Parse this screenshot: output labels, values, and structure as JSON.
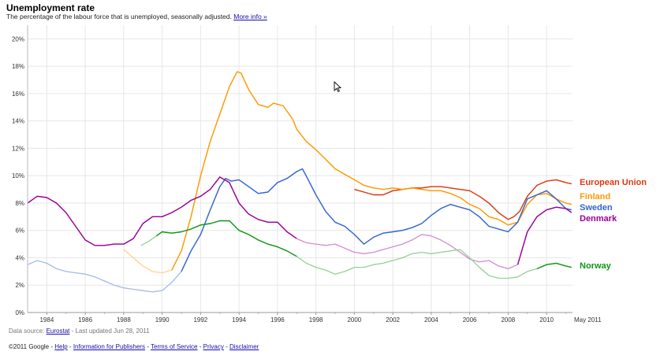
{
  "header": {
    "title": "Unemployment rate",
    "subtitle": "The percentage of the labour force that is unemployed, seasonally adjusted.",
    "more_info": "More info »"
  },
  "source": {
    "prefix": "Data source:",
    "link": "Eurostat",
    "updated": "- Last updated Jun 28, 2011"
  },
  "footer": {
    "copyright": "©2011 Google -",
    "links": [
      "Help",
      "Information for Publishers",
      "Terms of Service",
      "Privacy",
      "Disclaimer"
    ]
  },
  "chart_data": {
    "type": "line",
    "ylim": [
      0,
      21
    ],
    "y_ticks": [
      "0%",
      "2%",
      "4%",
      "6%",
      "8%",
      "10%",
      "12%",
      "14%",
      "16%",
      "18%",
      "20%"
    ],
    "y_tick_values": [
      0,
      2,
      4,
      6,
      8,
      10,
      12,
      14,
      16,
      18,
      20
    ],
    "xlim": [
      1983.0,
      2011.35
    ],
    "x_ticks": [
      "1984",
      "1986",
      "1988",
      "1990",
      "1992",
      "1994",
      "1996",
      "1998",
      "2000",
      "2002",
      "2004",
      "2006",
      "2008",
      "2010"
    ],
    "x_tick_values": [
      1984,
      1986,
      1988,
      1990,
      1992,
      1994,
      1996,
      1998,
      2000,
      2002,
      2004,
      2006,
      2008,
      2010
    ],
    "x_end_label": "May 2011",
    "series": [
      {
        "name": "European Union",
        "color": "#dc3912",
        "x": [
          2000.0,
          2000.5,
          2001.0,
          2001.5,
          2002.0,
          2002.5,
          2003.0,
          2003.5,
          2004.0,
          2004.5,
          2005.0,
          2005.5,
          2006.0,
          2006.5,
          2007.0,
          2007.5,
          2008.0,
          2008.3,
          2008.6,
          2009.0,
          2009.5,
          2010.0,
          2010.5,
          2011.0,
          2011.3
        ],
        "y": [
          9.0,
          8.8,
          8.6,
          8.6,
          8.9,
          9.0,
          9.1,
          9.1,
          9.2,
          9.2,
          9.1,
          9.0,
          8.9,
          8.5,
          8.0,
          7.3,
          6.8,
          7.0,
          7.4,
          8.5,
          9.3,
          9.6,
          9.7,
          9.5,
          9.4
        ]
      },
      {
        "name": "Finland",
        "color": "#ff9900",
        "x": [
          1988.0,
          1988.5,
          1989.0,
          1989.5,
          1990.0,
          1990.5,
          1991.0,
          1991.5,
          1992.0,
          1992.5,
          1993.0,
          1993.5,
          1993.9,
          1994.1,
          1994.5,
          1995.0,
          1995.5,
          1995.8,
          1996.3,
          1996.8,
          1997.0,
          1997.5,
          1998.0,
          1998.5,
          1999.0,
          1999.5,
          2000.0,
          2000.5,
          2001.0,
          2001.5,
          2002.0,
          2002.5,
          2003.0,
          2003.5,
          2004.0,
          2004.5,
          2005.0,
          2005.5,
          2006.0,
          2006.5,
          2007.0,
          2007.5,
          2008.0,
          2008.5,
          2009.0,
          2009.5,
          2010.0,
          2010.5,
          2011.0,
          2011.3
        ],
        "y": [
          4.6,
          4.0,
          3.4,
          3.0,
          2.9,
          3.1,
          4.5,
          7.0,
          10.0,
          12.5,
          14.5,
          16.5,
          17.6,
          17.5,
          16.3,
          15.2,
          15.0,
          15.3,
          15.1,
          14.1,
          13.4,
          12.5,
          11.9,
          11.2,
          10.5,
          10.1,
          9.7,
          9.3,
          9.1,
          9.0,
          9.1,
          9.0,
          9.1,
          9.0,
          8.9,
          8.9,
          8.7,
          8.4,
          7.9,
          7.6,
          7.0,
          6.8,
          6.4,
          6.6,
          7.9,
          8.6,
          8.7,
          8.3,
          8.0,
          7.9
        ]
      },
      {
        "name": "Sweden",
        "color": "#3366cc",
        "x": [
          1983.0,
          1983.5,
          1984.0,
          1984.5,
          1985.0,
          1985.5,
          1986.0,
          1986.5,
          1987.0,
          1987.5,
          1988.0,
          1988.5,
          1989.0,
          1989.5,
          1990.0,
          1990.5,
          1991.0,
          1991.5,
          1992.0,
          1992.5,
          1993.0,
          1993.3,
          1993.6,
          1994.0,
          1994.5,
          1995.0,
          1995.5,
          1996.0,
          1996.5,
          1997.0,
          1997.3,
          1997.6,
          1998.0,
          1998.5,
          1999.0,
          1999.5,
          2000.0,
          2000.5,
          2001.0,
          2001.5,
          2002.0,
          2002.5,
          2003.0,
          2003.5,
          2004.0,
          2004.5,
          2005.0,
          2005.5,
          2006.0,
          2006.5,
          2007.0,
          2007.5,
          2008.0,
          2008.5,
          2009.0,
          2009.5,
          2010.0,
          2010.5,
          2011.0,
          2011.3
        ],
        "y": [
          3.5,
          3.8,
          3.6,
          3.2,
          3.0,
          2.9,
          2.8,
          2.6,
          2.3,
          2.0,
          1.8,
          1.7,
          1.6,
          1.5,
          1.6,
          2.2,
          3.0,
          4.5,
          5.7,
          7.5,
          9.2,
          9.8,
          9.6,
          9.7,
          9.2,
          8.7,
          8.8,
          9.5,
          9.8,
          10.3,
          10.5,
          9.7,
          8.6,
          7.4,
          6.6,
          6.3,
          5.7,
          5.0,
          5.5,
          5.8,
          5.9,
          6.0,
          6.2,
          6.5,
          7.1,
          7.6,
          7.9,
          7.7,
          7.5,
          7.0,
          6.3,
          6.1,
          5.9,
          6.6,
          8.3,
          8.6,
          8.9,
          8.3,
          7.6,
          7.5
        ]
      },
      {
        "name": "Denmark",
        "color": "#990099",
        "x": [
          1983.0,
          1983.5,
          1984.0,
          1984.5,
          1985.0,
          1985.5,
          1986.0,
          1986.5,
          1987.0,
          1987.5,
          1988.0,
          1988.5,
          1989.0,
          1989.5,
          1990.0,
          1990.5,
          1991.0,
          1991.5,
          1992.0,
          1992.5,
          1993.0,
          1993.5,
          1994.0,
          1994.5,
          1995.0,
          1995.5,
          1996.0,
          1996.5,
          1997.0,
          1997.5,
          1998.0,
          1998.5,
          1999.0,
          1999.5,
          2000.0,
          2000.5,
          2001.0,
          2001.5,
          2002.0,
          2002.5,
          2003.0,
          2003.5,
          2004.0,
          2004.5,
          2005.0,
          2005.5,
          2006.0,
          2006.5,
          2007.0,
          2007.5,
          2008.0,
          2008.5,
          2009.0,
          2009.5,
          2010.0,
          2010.5,
          2011.0,
          2011.3
        ],
        "y": [
          8.0,
          8.5,
          8.4,
          8.0,
          7.3,
          6.3,
          5.3,
          4.9,
          4.9,
          5.0,
          5.0,
          5.4,
          6.5,
          7.0,
          7.0,
          7.3,
          7.7,
          8.2,
          8.5,
          9.0,
          9.9,
          9.5,
          8.0,
          7.2,
          6.8,
          6.6,
          6.6,
          5.9,
          5.4,
          5.1,
          5.0,
          4.9,
          5.0,
          4.7,
          4.4,
          4.3,
          4.4,
          4.6,
          4.8,
          5.0,
          5.3,
          5.7,
          5.6,
          5.3,
          4.9,
          4.4,
          3.9,
          3.7,
          3.8,
          3.4,
          3.2,
          3.5,
          5.9,
          7.0,
          7.5,
          7.7,
          7.6,
          7.3
        ]
      },
      {
        "name": "Norway",
        "color": "#109618",
        "x": [
          1988.9,
          1989.3,
          1989.7,
          1990.0,
          1990.5,
          1991.0,
          1991.5,
          1992.0,
          1992.5,
          1993.0,
          1993.5,
          1994.0,
          1994.5,
          1995.0,
          1995.5,
          1996.0,
          1996.5,
          1997.0,
          1997.5,
          1998.0,
          1998.5,
          1999.0,
          1999.5,
          2000.0,
          2000.5,
          2001.0,
          2001.5,
          2002.0,
          2002.5,
          2003.0,
          2003.5,
          2004.0,
          2004.5,
          2005.0,
          2005.5,
          2006.0,
          2006.5,
          2007.0,
          2007.5,
          2008.0,
          2008.5,
          2009.0,
          2009.5,
          2010.0,
          2010.5,
          2011.0,
          2011.3
        ],
        "y": [
          4.9,
          5.2,
          5.6,
          5.9,
          5.8,
          5.9,
          6.1,
          6.4,
          6.5,
          6.7,
          6.7,
          6.0,
          5.7,
          5.3,
          5.0,
          4.8,
          4.5,
          4.1,
          3.6,
          3.3,
          3.1,
          2.8,
          3.0,
          3.3,
          3.3,
          3.5,
          3.6,
          3.8,
          4.0,
          4.3,
          4.4,
          4.3,
          4.4,
          4.5,
          4.6,
          4.0,
          3.3,
          2.7,
          2.5,
          2.5,
          2.6,
          3.0,
          3.2,
          3.5,
          3.6,
          3.4,
          3.3
        ]
      }
    ]
  }
}
